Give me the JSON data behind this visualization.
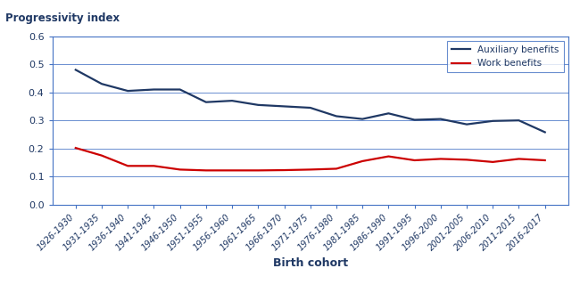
{
  "x_labels": [
    "1926-1930",
    "1931-1935",
    "1936-1940",
    "1941-1945",
    "1946-1950",
    "1951-1955",
    "1956-1960",
    "1961-1965",
    "1966-1970",
    "1971-1975",
    "1976-1980",
    "1981-1985",
    "1986-1990",
    "1991-1995",
    "1996-2000",
    "2001-2005",
    "2006-2010",
    "2011-2015",
    "2016-2017"
  ],
  "auxiliary_benefits": [
    0.48,
    0.43,
    0.405,
    0.41,
    0.41,
    0.365,
    0.37,
    0.355,
    0.35,
    0.345,
    0.315,
    0.305,
    0.325,
    0.302,
    0.305,
    0.286,
    0.298,
    0.3,
    0.258
  ],
  "work_benefits": [
    0.202,
    0.175,
    0.138,
    0.138,
    0.125,
    0.122,
    0.122,
    0.122,
    0.123,
    0.125,
    0.128,
    0.155,
    0.172,
    0.158,
    0.163,
    0.16,
    0.152,
    0.163,
    0.158
  ],
  "auxiliary_color": "#1f3864",
  "work_color": "#cc0000",
  "title": "Progressivity index",
  "xlabel": "Birth cohort",
  "ylim": [
    0,
    0.6
  ],
  "yticks": [
    0,
    0.1,
    0.2,
    0.3,
    0.4,
    0.5,
    0.6
  ],
  "legend_labels": [
    "Auxiliary benefits",
    "Work benefits"
  ],
  "background_color": "#ffffff",
  "grid_color": "#4472c4",
  "spine_color": "#4472c4",
  "line_width": 1.6,
  "title_color": "#1f3864",
  "label_color": "#1f3864",
  "tick_color": "#1f3864"
}
